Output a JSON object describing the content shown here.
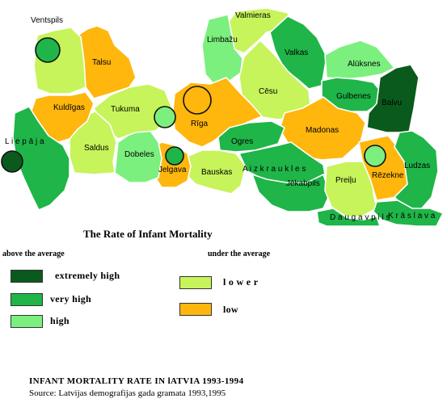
{
  "map": {
    "title": "The Rate of Infant Mortality",
    "legend": {
      "above_heading": "above the average",
      "under_heading": "under the average",
      "categories": {
        "extremely_high": {
          "label": "extremely high",
          "color": "#0b5a1d"
        },
        "very_high": {
          "label": "very high",
          "color": "#1fb548"
        },
        "high": {
          "label": "high",
          "color": "#7cf07e"
        },
        "lower": {
          "label": "l o w e r",
          "color": "#c6f45a"
        },
        "low": {
          "label": "low",
          "color": "#ffb60d"
        }
      }
    },
    "districts": [
      {
        "name": "Valmieras",
        "category": "lower"
      },
      {
        "name": "Limbažu",
        "category": "high"
      },
      {
        "name": "Valkas",
        "category": "very_high"
      },
      {
        "name": "Alūksnes",
        "category": "high"
      },
      {
        "name": "Gulbenes",
        "category": "very_high"
      },
      {
        "name": "Balvu",
        "category": "extremely_high"
      },
      {
        "name": "Cēsu",
        "category": "lower"
      },
      {
        "name": "Madonas",
        "category": "low"
      },
      {
        "name": "Rīga",
        "category": "low"
      },
      {
        "name": "Ogres",
        "category": "very_high"
      },
      {
        "name": "A i z k r a u k l e s",
        "category": "very_high"
      },
      {
        "name": "Jēkabpils",
        "category": "very_high"
      },
      {
        "name": "Preiļu",
        "category": "lower"
      },
      {
        "name": "Rēzekne",
        "category": "low"
      },
      {
        "name": "Ludzas",
        "category": "very_high"
      },
      {
        "name": "K r ā s l a v a",
        "category": "very_high"
      },
      {
        "name": "D a u g a v p i l s",
        "category": "very_high"
      },
      {
        "name": "Bauskas",
        "category": "lower"
      },
      {
        "name": "Jelgava",
        "category": "low"
      },
      {
        "name": "Dobeles",
        "category": "high"
      },
      {
        "name": "Tukuma",
        "category": "lower"
      },
      {
        "name": "Saldus",
        "category": "lower"
      },
      {
        "name": "Talsu",
        "category": "low"
      },
      {
        "name": "Ventspils",
        "category": "lower"
      },
      {
        "name": "Kuldīgas",
        "category": "low"
      },
      {
        "name": "L i e p ā j a",
        "category": "very_high"
      }
    ],
    "cities": [
      {
        "name": "Ventspils city",
        "category": "very_high"
      },
      {
        "name": "Jūrmala city",
        "category": "high"
      },
      {
        "name": "Rīga city",
        "category": "low"
      },
      {
        "name": "Jelgava city",
        "category": "very_high"
      },
      {
        "name": "Liepāja city",
        "category": "extremely_high"
      },
      {
        "name": "Rēzekne city",
        "category": "high"
      },
      {
        "name": "Daugavpils city",
        "category": "very_high"
      }
    ]
  },
  "footer": {
    "title": "INFANT MORTALITY RATE IN lATVIA 1993-1994",
    "source": "Source: Latvijas demografijas gada gramata 1993,1995"
  }
}
